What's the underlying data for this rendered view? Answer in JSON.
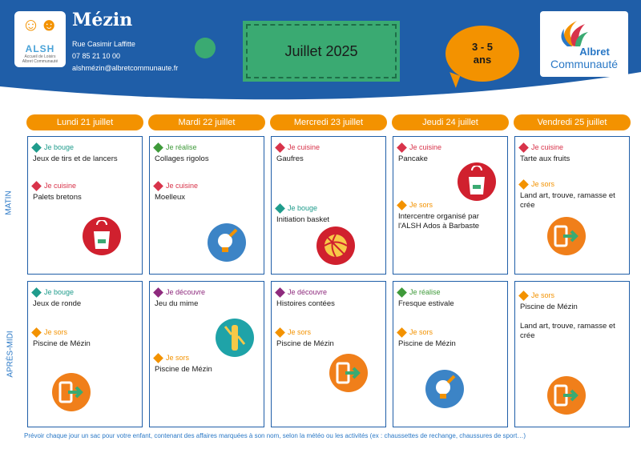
{
  "header": {
    "center_name": "Mézin",
    "address": "Rue Casimir Laffitte",
    "phone": "07 85 21 10 00",
    "email": "alshmézin@albretcommunaute.fr",
    "month": "Juillet 2025",
    "age_top": "3 - 5",
    "age_bottom": "ans",
    "logo_alsh": {
      "letters": "ALSH",
      "sub1": "Accueil de Loisirs",
      "sub2": "Albret Communauté"
    },
    "logo_albret": {
      "line1": "Albret",
      "line2": "Communauté"
    }
  },
  "row_labels": {
    "morning": "MATIN",
    "afternoon": "APRÈS-MIDI"
  },
  "days": [
    "Lundi 21 juillet",
    "Mardi 22 juillet",
    "Mercredi 23 juillet",
    "Jeudi 24 juillet",
    "Vendredi 25 juillet"
  ],
  "colors": {
    "blue": "#1f5ea8",
    "orange": "#f39200",
    "green": "#3aaa72",
    "bouge": "#1f9c8c",
    "cuisine": "#d8334a",
    "realise": "#3f9a3a",
    "decouvre": "#8e2a7d",
    "sors": "#f39200"
  },
  "morning": [
    [
      {
        "cat": "Je bouge",
        "title": "Jeux de tirs et de lancers"
      },
      {
        "cat": "Je cuisine",
        "title": "Palets bretons"
      }
    ],
    [
      {
        "cat": "Je réalise",
        "title": "Collages rigolos"
      },
      {
        "cat": "Je cuisine",
        "title": "Moelleux"
      }
    ],
    [
      {
        "cat": "Je cuisine",
        "title": "Gaufres"
      },
      {
        "cat": "Je bouge",
        "title": "Initiation basket"
      }
    ],
    [
      {
        "cat": "Je cuisine",
        "title": "Pancake"
      },
      {
        "cat": "Je sors",
        "title": "Intercentre organisé par l'ALSH Ados à Barbaste"
      }
    ],
    [
      {
        "cat": "Je cuisine",
        "title": "Tarte aux fruits"
      },
      {
        "cat": "Je sors",
        "title": "Land art, trouve, ramasse et crée"
      }
    ]
  ],
  "afternoon": [
    [
      {
        "cat": "Je bouge",
        "title": "Jeux de ronde"
      },
      {
        "cat": "Je sors",
        "title": "Piscine de Mézin"
      }
    ],
    [
      {
        "cat": "Je découvre",
        "title": "Jeu du mime"
      },
      {
        "cat": "Je sors",
        "title": "Piscine de Mézin"
      }
    ],
    [
      {
        "cat": "Je découvre",
        "title": "Histoires contées"
      },
      {
        "cat": "Je sors",
        "title": "Piscine de Mézin"
      }
    ],
    [
      {
        "cat": "Je réalise",
        "title": "Fresque estivale"
      },
      {
        "cat": "Je sors",
        "title": "Piscine de Mézin"
      }
    ],
    [
      {
        "cat": "Je sors",
        "title": "Piscine de Mézin"
      },
      {
        "cat": "",
        "title": "Land art, trouve, ramasse et crée"
      }
    ]
  ],
  "icons": {
    "morning": [
      "apron-icon",
      "lightbulb-icon",
      "volleyball-icon",
      "apron-icon",
      "exit-icon"
    ],
    "afternoon": [
      "exit-icon",
      "mime-icon",
      "exit-icon",
      "lightbulb-icon",
      "exit-icon"
    ]
  },
  "footer": "Prévoir chaque jour un sac pour votre enfant, contenant des affaires marquées à son nom, selon la météo ou les activités (ex : chaussettes de rechange, chaussures de sport…)"
}
